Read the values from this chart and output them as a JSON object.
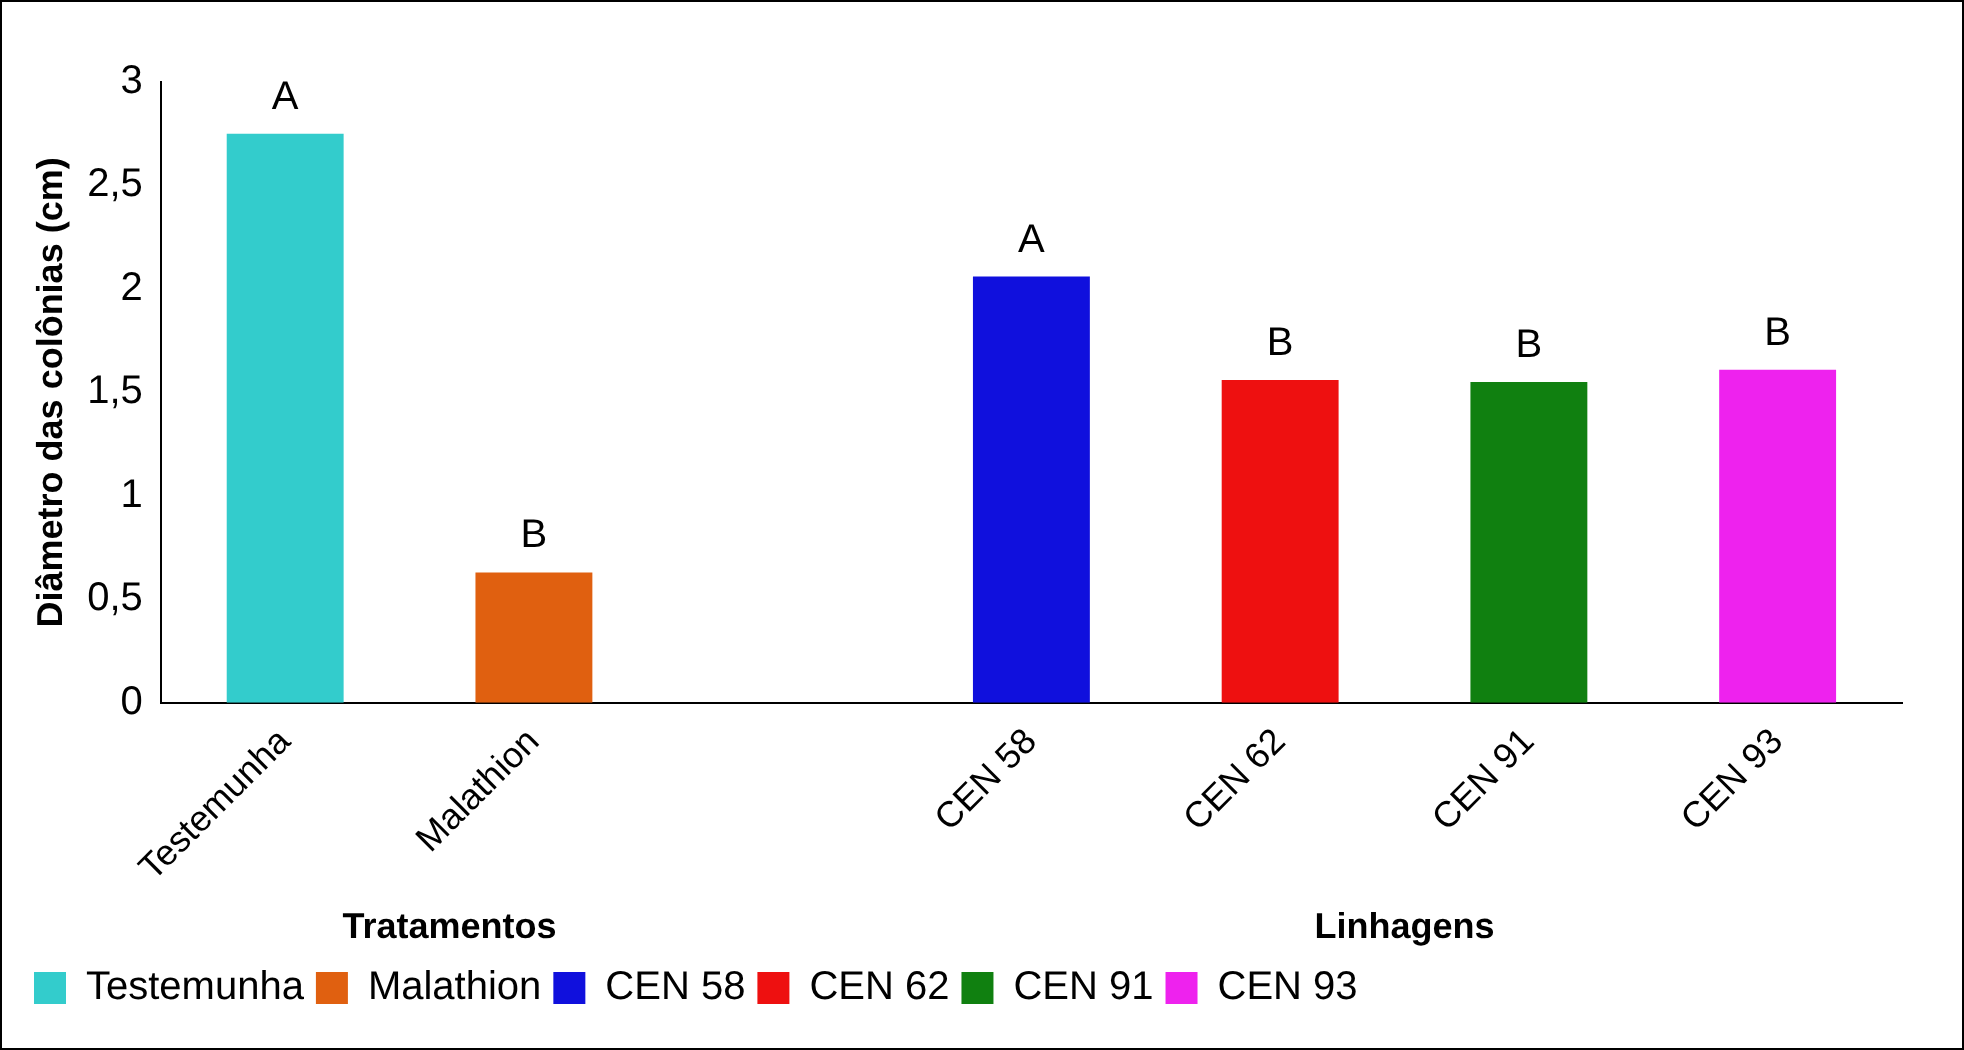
{
  "chart_data": {
    "type": "bar",
    "ylabel": "Diâmetro das colônias (cm)",
    "categories": [
      "Testemunha",
      "Malathion",
      null,
      "CEN 58",
      "CEN 62",
      "CEN 91",
      "CEN 93"
    ],
    "series": [
      {
        "name": "Testemunha",
        "color": "#33cccc",
        "values": [
          2.75,
          null,
          null,
          null,
          null,
          null,
          null
        ],
        "value_labels": [
          "A",
          null,
          null,
          null,
          null,
          null,
          null
        ]
      },
      {
        "name": "Malathion",
        "color": "#e06010",
        "values": [
          null,
          0.63,
          null,
          null,
          null,
          null,
          null
        ],
        "value_labels": [
          null,
          "B",
          null,
          null,
          null,
          null,
          null
        ]
      },
      {
        "name": "CEN 58",
        "color": "#1010dd",
        "values": [
          null,
          null,
          null,
          2.06,
          null,
          null,
          null
        ],
        "value_labels": [
          null,
          null,
          null,
          "A",
          null,
          null,
          null
        ]
      },
      {
        "name": "CEN 62",
        "color": "#ee1010",
        "values": [
          null,
          null,
          null,
          null,
          1.56,
          null,
          null
        ],
        "value_labels": [
          null,
          null,
          null,
          null,
          "B",
          null,
          null
        ]
      },
      {
        "name": "CEN 91",
        "color": "#108010",
        "values": [
          null,
          null,
          null,
          null,
          null,
          1.55,
          null
        ],
        "value_labels": [
          null,
          null,
          null,
          null,
          null,
          "B",
          null
        ]
      },
      {
        "name": "CEN 93",
        "color": "#ee22ee",
        "values": [
          null,
          null,
          null,
          null,
          null,
          null,
          1.61
        ],
        "value_labels": [
          null,
          null,
          null,
          null,
          null,
          null,
          "B"
        ]
      }
    ],
    "ylim": [
      0,
      3
    ],
    "yticks": [
      0,
      {
        "value": 0.5,
        "label": "0,5"
      },
      1,
      {
        "value": 1.5,
        "label": "1,5"
      },
      2,
      {
        "value": 2.5,
        "label": "2,5"
      },
      3
    ],
    "grid": false,
    "legend": "bottom",
    "annotations": [
      "Tratamentos",
      "Linhagens"
    ]
  }
}
